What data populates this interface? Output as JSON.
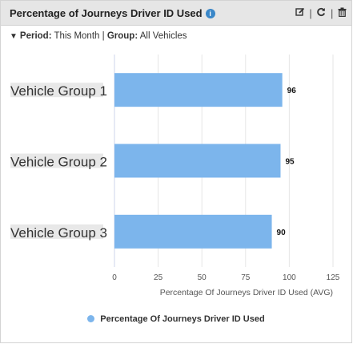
{
  "widget": {
    "title": "Percentage of Journeys Driver ID Used",
    "info_icon": "info-icon",
    "tools": {
      "edit_icon": "edit-icon",
      "refresh_icon": "refresh-icon",
      "delete_icon": "trash-icon",
      "separator": "|"
    }
  },
  "filters": {
    "period_label": "Period:",
    "period_value": "This Month",
    "separator": "|",
    "group_label": "Group:",
    "group_value": "All Vehicles"
  },
  "chart_data": {
    "type": "bar",
    "orientation": "horizontal",
    "categories": [
      "Vehicle Group 1",
      "Vehicle Group 2",
      "Vehicle Group 3"
    ],
    "series": [
      {
        "name": "Percentage Of Journeys Driver ID Used",
        "values": [
          96,
          95,
          90
        ],
        "color": "#7cb5ec"
      }
    ],
    "xlabel": "Percentage Of Journeys Driver ID Used (AVG)",
    "xlim": [
      0,
      125
    ],
    "xticks": [
      "0",
      "25",
      "50",
      "75",
      "100",
      "125"
    ],
    "grid": true,
    "legend": "bottom-center"
  }
}
